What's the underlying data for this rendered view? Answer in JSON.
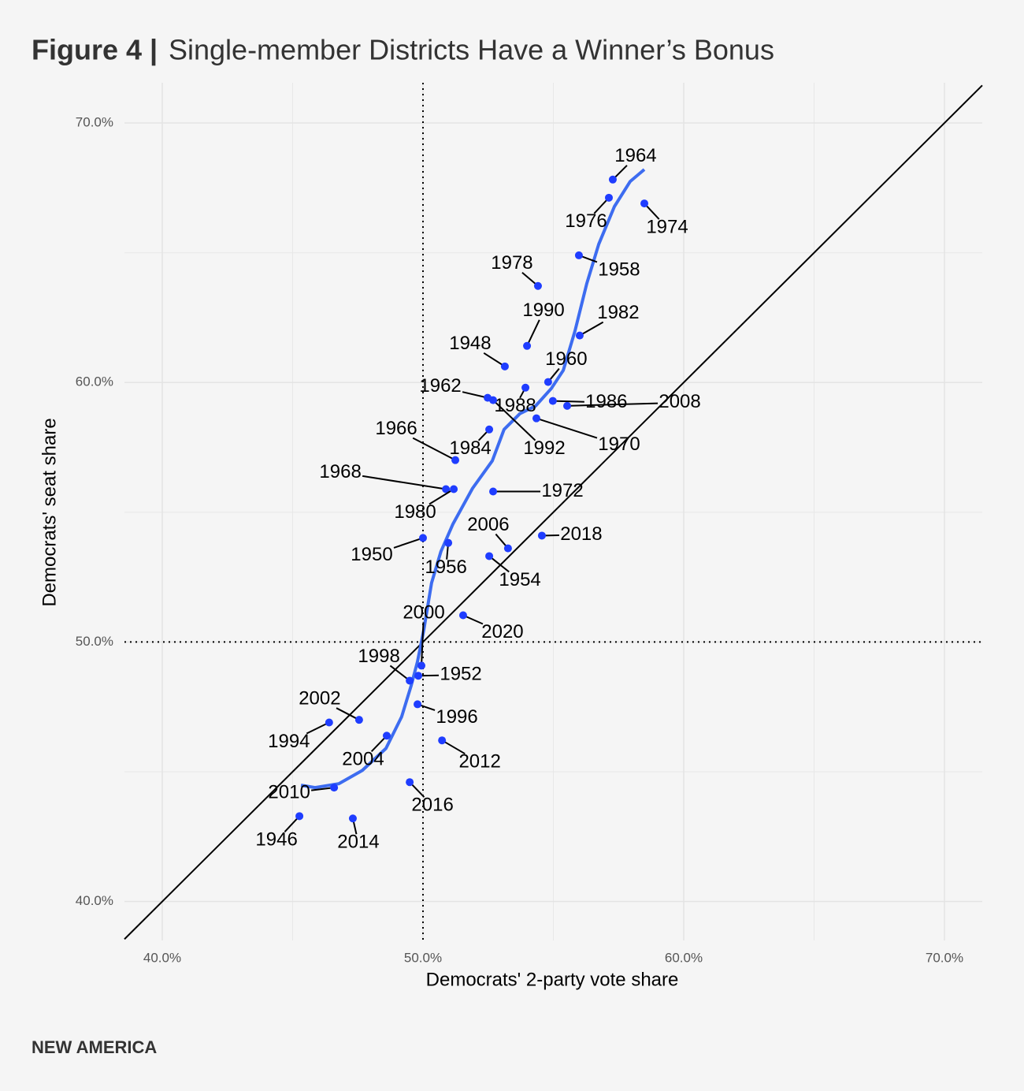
{
  "chart_data": {
    "type": "scatter",
    "title_prefix": "Figure 4 |",
    "title": "Single-member Districts Have a Winner’s Bonus",
    "xlabel": "Democrats' 2-party vote share",
    "ylabel": "Democrats' seat share",
    "source": "NEW AMERICA",
    "xlim": [
      38.55,
      71.45
    ],
    "ylim": [
      38.5,
      71.55
    ],
    "xticks": [
      {
        "value": 40,
        "label": "40.0%"
      },
      {
        "value": 50,
        "label": "50.0%"
      },
      {
        "value": 60,
        "label": "60.0%"
      },
      {
        "value": 70,
        "label": "70.0%"
      }
    ],
    "yticks": [
      {
        "value": 40,
        "label": "40.0%"
      },
      {
        "value": 50,
        "label": "50.0%"
      },
      {
        "value": 60,
        "label": "60.0%"
      },
      {
        "value": 70,
        "label": "70.0%"
      }
    ],
    "xminor_ticks": [
      45,
      55,
      65
    ],
    "yminor_ticks": [
      45,
      55,
      65
    ],
    "grid": true,
    "hline": 50,
    "vline": 50,
    "diagonal": true,
    "color": "#1f3dff",
    "labels": [
      "1964",
      "1976",
      "1974",
      "1958",
      "1978",
      "1990",
      "1982",
      "1948",
      "1960",
      "1962",
      "1988",
      "1992",
      "1986",
      "2008",
      "1970",
      "1984",
      "1966",
      "1968",
      "1980",
      "1972",
      "1950",
      "2006",
      "2018",
      "1956",
      "1954",
      "2000",
      "2020",
      "1998",
      "1952",
      "1996",
      "2002",
      "1994",
      "2004",
      "2012",
      "2010",
      "2016",
      "1946",
      "2014"
    ],
    "x": [
      57.28,
      57.13,
      58.49,
      55.98,
      54.41,
      53.99,
      56.01,
      53.14,
      54.8,
      52.48,
      53.93,
      52.69,
      54.98,
      55.53,
      54.35,
      52.54,
      51.24,
      50.88,
      51.18,
      52.69,
      50.0,
      53.26,
      54.56,
      50.97,
      52.54,
      49.94,
      51.54,
      49.49,
      49.82,
      49.79,
      47.55,
      46.4,
      48.61,
      50.73,
      46.59,
      49.49,
      45.26,
      47.31
    ],
    "values": [
      67.82,
      67.12,
      66.9,
      64.9,
      63.72,
      61.41,
      61.81,
      60.62,
      60.02,
      59.41,
      59.8,
      59.32,
      59.29,
      59.1,
      58.62,
      58.19,
      57.01,
      55.89,
      55.89,
      55.8,
      54.01,
      53.61,
      54.1,
      53.82,
      53.31,
      49.09,
      51.03,
      48.51,
      48.7,
      47.6,
      47.0,
      46.9,
      46.39,
      46.21,
      44.39,
      44.6,
      43.29,
      43.2
    ],
    "smooth": {
      "color": "#3d6cf0",
      "x": [
        45.32,
        45.86,
        46.77,
        47.67,
        48.58,
        49.18,
        49.55,
        49.79,
        50.03,
        50.33,
        50.69,
        51.15,
        51.9,
        52.66,
        53.11,
        53.72,
        54.32,
        54.92,
        55.38,
        55.83,
        56.28,
        56.74,
        57.34,
        57.95,
        58.49
      ],
      "values": [
        44.48,
        44.39,
        44.54,
        45.05,
        45.9,
        47.12,
        48.33,
        49.24,
        50.46,
        52.28,
        53.49,
        54.55,
        55.92,
        56.98,
        58.19,
        58.8,
        59.1,
        59.77,
        60.47,
        61.99,
        63.81,
        65.33,
        66.78,
        67.75,
        68.21
      ]
    }
  }
}
